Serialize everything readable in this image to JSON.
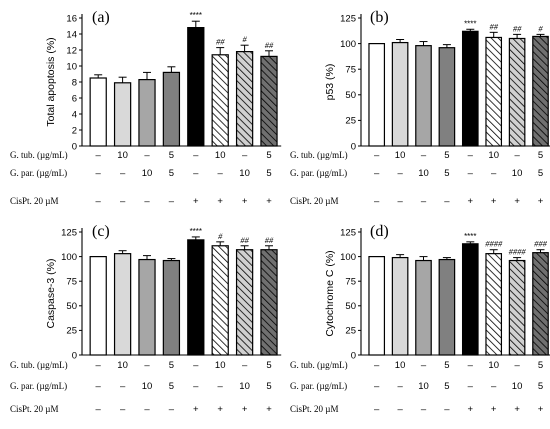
{
  "conditions": {
    "labels": [
      "G. tub. (µg/mL)",
      "G. par. (µg/mL)",
      "CisPt. 20 µM"
    ],
    "rows": [
      [
        "–",
        "10",
        "–",
        "5",
        "–",
        "10",
        "–",
        "5"
      ],
      [
        "–",
        "–",
        "10",
        "5",
        "–",
        "–",
        "10",
        "5"
      ],
      [
        "–",
        "–",
        "–",
        "–",
        "+",
        "+",
        "+",
        "+"
      ]
    ]
  },
  "bar_styles": [
    "white",
    "light",
    "mid",
    "dark",
    "black",
    "hatch-white",
    "hatch-light",
    "hatch-dark"
  ],
  "colors": {
    "light": "#d9d9d9",
    "mid": "#a6a6a6",
    "dark": "#808080",
    "black": "#000000",
    "hatch-dark": "#6e6e6e"
  },
  "chart_data": [
    {
      "panel": "(a)",
      "type": "bar",
      "ylabel": "Total apoptosis (%)",
      "ylim": [
        0,
        16
      ],
      "yticks": [
        "0",
        "2",
        "4",
        "6",
        "8",
        "10",
        "12",
        "14",
        "16"
      ],
      "values": [
        8.5,
        7.9,
        8.3,
        9.2,
        14.8,
        11.4,
        11.8,
        11.2
      ],
      "errors": [
        0.4,
        0.7,
        0.9,
        0.7,
        0.8,
        0.9,
        0.8,
        0.7
      ],
      "annotations": [
        "",
        "",
        "",
        "",
        "****",
        "##",
        "#",
        "##"
      ]
    },
    {
      "panel": "(b)",
      "type": "bar",
      "ylabel": "p53 (%)",
      "ylim": [
        0,
        125
      ],
      "yticks": [
        "0",
        "25",
        "50",
        "75",
        "100",
        "125"
      ],
      "values": [
        100,
        101,
        98,
        96,
        112,
        106,
        105,
        107
      ],
      "errors": [
        0,
        3,
        4,
        3,
        2,
        5,
        4,
        2
      ],
      "annotations": [
        "",
        "",
        "",
        "",
        "****",
        "##",
        "##",
        "#"
      ]
    },
    {
      "panel": "(c)",
      "type": "bar",
      "ylabel": "Caspase-3 (%)",
      "ylim": [
        0,
        125
      ],
      "yticks": [
        "0",
        "25",
        "50",
        "75",
        "100",
        "125"
      ],
      "values": [
        100,
        103,
        97,
        96,
        117,
        111,
        107,
        107
      ],
      "errors": [
        0,
        3,
        4,
        2,
        3,
        4,
        4,
        4
      ],
      "annotations": [
        "",
        "",
        "",
        "",
        "****",
        "#",
        "##",
        "##"
      ]
    },
    {
      "panel": "(d)",
      "type": "bar",
      "ylabel": "Cytochrome C (%)",
      "ylim": [
        0,
        125
      ],
      "yticks": [
        "0",
        "25",
        "50",
        "75",
        "100",
        "125"
      ],
      "values": [
        100,
        99,
        96,
        97,
        113,
        103,
        96,
        104
      ],
      "errors": [
        0,
        3,
        4,
        2,
        2,
        4,
        3,
        3
      ],
      "annotations": [
        "",
        "",
        "",
        "",
        "****",
        "####",
        "####",
        "###"
      ]
    }
  ]
}
